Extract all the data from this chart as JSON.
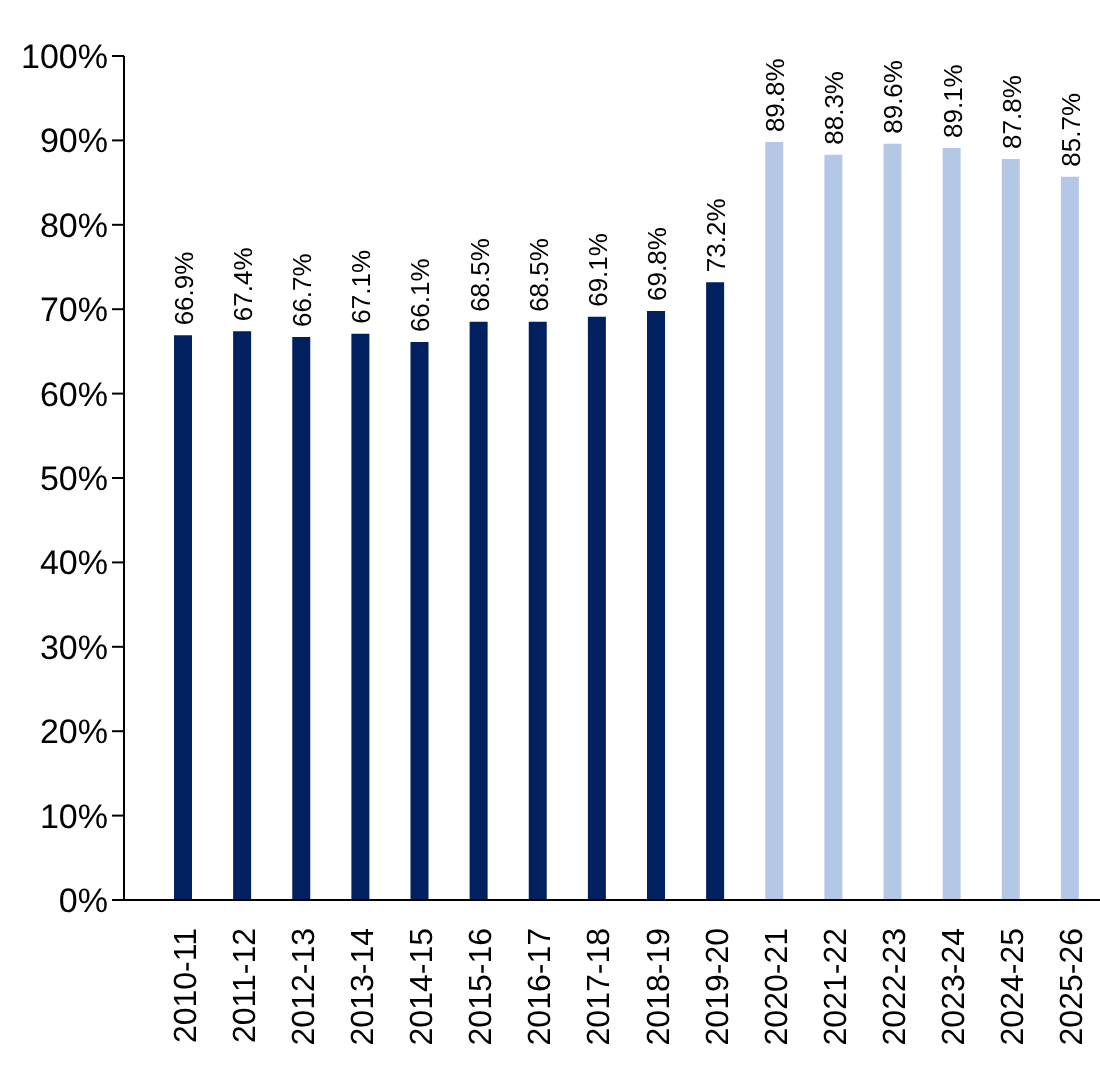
{
  "chart_data": {
    "type": "bar",
    "categories": [
      "2010-11",
      "2011-12",
      "2012-13",
      "2013-14",
      "2014-15",
      "2015-16",
      "2016-17",
      "2017-18",
      "2018-19",
      "2019-20",
      "2020-21",
      "2021-22",
      "2022-23",
      "2023-24",
      "2024-25",
      "2025-26"
    ],
    "values": [
      66.9,
      67.4,
      66.7,
      67.1,
      66.1,
      68.5,
      68.5,
      69.1,
      69.8,
      73.2,
      89.8,
      88.3,
      89.6,
      89.1,
      87.8,
      85.7
    ],
    "colors": [
      "#002060",
      "#002060",
      "#002060",
      "#002060",
      "#002060",
      "#002060",
      "#002060",
      "#002060",
      "#002060",
      "#002060",
      "#b4c7e7",
      "#b4c7e7",
      "#b4c7e7",
      "#b4c7e7",
      "#b4c7e7",
      "#b4c7e7"
    ],
    "value_labels": [
      "66.9%",
      "67.4%",
      "66.7%",
      "67.1%",
      "66.1%",
      "68.5%",
      "68.5%",
      "69.1%",
      "69.8%",
      "73.2%",
      "89.8%",
      "88.3%",
      "89.6%",
      "89.1%",
      "87.8%",
      "85.7%"
    ],
    "ylim": [
      0,
      100
    ],
    "yticks": [
      {
        "value": 0,
        "label": "0%"
      },
      {
        "value": 10,
        "label": "10%"
      },
      {
        "value": 20,
        "label": "20%"
      },
      {
        "value": 30,
        "label": "30%"
      },
      {
        "value": 40,
        "label": "40%"
      },
      {
        "value": 50,
        "label": "50%"
      },
      {
        "value": 60,
        "label": "60%"
      },
      {
        "value": 70,
        "label": "70%"
      },
      {
        "value": 80,
        "label": "80%"
      },
      {
        "value": 90,
        "label": "90%"
      },
      {
        "value": 100,
        "label": "100%"
      }
    ],
    "grid": false
  }
}
